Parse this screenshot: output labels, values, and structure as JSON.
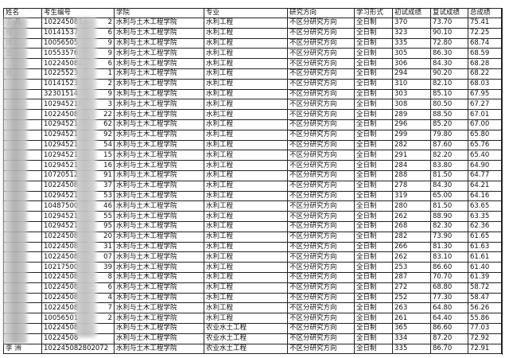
{
  "headers": [
    "姓名",
    "考生编号",
    "学院",
    "专业",
    "研究方向",
    "学习形式",
    "初试成绩",
    "复试成绩",
    "总成绩"
  ],
  "rows": [
    {
      "name": "丁 凡",
      "id_prefix": "102245081",
      "id_suffix": "2",
      "college": "水利与土木工程学院",
      "major": "水利工程",
      "direction": "不区分研究方向",
      "mode": "全日制",
      "initial": "370",
      "retest": "73.70",
      "total": "75.41"
    },
    {
      "name": "骞",
      "id_prefix": "10141537",
      "id_suffix": "6",
      "college": "水利与土木工程学院",
      "major": "水利工程",
      "direction": "不区分研究方向",
      "mode": "全日制",
      "initial": "323",
      "retest": "90.10",
      "total": "72.25"
    },
    {
      "name": "煲",
      "id_prefix": "10056505",
      "id_suffix": "9",
      "college": "水利与土木工程学院",
      "major": "水利工程",
      "direction": "不区分研究方向",
      "mode": "全日制",
      "initial": "335",
      "retest": "72.80",
      "total": "68.74"
    },
    {
      "name": "翌",
      "id_prefix": "10553576",
      "id_suffix": "9",
      "college": "水利与土木工程学院",
      "major": "水利工程",
      "direction": "不区分研究方向",
      "mode": "全日制",
      "initial": "305",
      "retest": "86.30",
      "total": "68.59"
    },
    {
      "name": "",
      "id_prefix": "102245081",
      "id_suffix": "6",
      "college": "水利与土木工程学院",
      "major": "水利工程",
      "direction": "不区分研究方向",
      "mode": "全日制",
      "initial": "306",
      "retest": "84.30",
      "total": "68.28"
    },
    {
      "name": "萁",
      "id_prefix": "10225523",
      "id_suffix": "1",
      "college": "水利与土木工程学院",
      "major": "水利工程",
      "direction": "不区分研究方向",
      "mode": "全日制",
      "initial": "294",
      "retest": "90.20",
      "total": "68.22"
    },
    {
      "name": "",
      "id_prefix": "10141523",
      "id_suffix": "2",
      "college": "水利与土木工程学院",
      "major": "水利工程",
      "direction": "不区分研究方向",
      "mode": "全日制",
      "initial": "310",
      "retest": "82.10",
      "total": "68.03"
    },
    {
      "name": "",
      "id_prefix": "32301514",
      "id_suffix": "9",
      "college": "水利与土木工程学院",
      "major": "水利工程",
      "direction": "不区分研究方向",
      "mode": "全日制",
      "initial": "303",
      "retest": "85.10",
      "total": "67.95"
    },
    {
      "name": "",
      "id_prefix": "102945210",
      "id_suffix": "3",
      "college": "水利与土木工程学院",
      "major": "水利工程",
      "direction": "不区分研究方向",
      "mode": "全日制",
      "initial": "308",
      "retest": "80.50",
      "total": "67.27"
    },
    {
      "name": "",
      "id_prefix": "10224508",
      "id_suffix": "22",
      "college": "水利与土木工程学院",
      "major": "水利工程",
      "direction": "不区分研究方向",
      "mode": "全日制",
      "initial": "289",
      "retest": "88.50",
      "total": "67.01"
    },
    {
      "name": "",
      "id_prefix": "10294521",
      "id_suffix": "62",
      "college": "水利与土木工程学院",
      "major": "水利工程",
      "direction": "不区分研究方向",
      "mode": "全日制",
      "initial": "296",
      "retest": "85.20",
      "total": "67.00"
    },
    {
      "name": "",
      "id_prefix": "10294521",
      "id_suffix": "92",
      "college": "水利与土木工程学院",
      "major": "水利工程",
      "direction": "不区分研究方向",
      "mode": "全日制",
      "initial": "299",
      "retest": "79.80",
      "total": "65.80"
    },
    {
      "name": "",
      "id_prefix": "10294521",
      "id_suffix": "54",
      "college": "水利与土木工程学院",
      "major": "水利工程",
      "direction": "不区分研究方向",
      "mode": "全日制",
      "initial": "282",
      "retest": "87.60",
      "total": "65.76"
    },
    {
      "name": "",
      "id_prefix": "10294521",
      "id_suffix": "15",
      "college": "水利与土木工程学院",
      "major": "水利工程",
      "direction": "不区分研究方向",
      "mode": "全日制",
      "initial": "291",
      "retest": "82.20",
      "total": "65.40"
    },
    {
      "name": "",
      "id_prefix": "10294521",
      "id_suffix": "16",
      "college": "水利与土木工程学院",
      "major": "水利工程",
      "direction": "不区分研究方向",
      "mode": "全日制",
      "initial": "284",
      "retest": "83.80",
      "total": "64.90"
    },
    {
      "name": "",
      "id_prefix": "10720512",
      "id_suffix": "91",
      "college": "水利与土木工程学院",
      "major": "水利工程",
      "direction": "不区分研究方向",
      "mode": "全日制",
      "initial": "288",
      "retest": "81.50",
      "total": "64.77"
    },
    {
      "name": "",
      "id_prefix": "10224508",
      "id_suffix": "37",
      "college": "水利与土木工程学院",
      "major": "水利工程",
      "direction": "不区分研究方向",
      "mode": "全日制",
      "initial": "278",
      "retest": "84.30",
      "total": "64.21"
    },
    {
      "name": "",
      "id_prefix": "10294521",
      "id_suffix": "53",
      "college": "水利与土木工程学院",
      "major": "水利工程",
      "direction": "不区分研究方向",
      "mode": "全日制",
      "initial": "319",
      "retest": "65.00",
      "total": "64.16"
    },
    {
      "name": "",
      "id_prefix": "10487500",
      "id_suffix": "46",
      "college": "水利与土木工程学院",
      "major": "水利工程",
      "direction": "不区分研究方向",
      "mode": "全日制",
      "initial": "280",
      "retest": "81.50",
      "total": "63.65"
    },
    {
      "name": "",
      "id_prefix": "10294521",
      "id_suffix": "55",
      "college": "水利与土木工程学院",
      "major": "水利工程",
      "direction": "不区分研究方向",
      "mode": "全日制",
      "initial": "262",
      "retest": "88.90",
      "total": "63.35"
    },
    {
      "name": "",
      "id_prefix": "10294521",
      "id_suffix": "95",
      "college": "水利与土木工程学院",
      "major": "水利工程",
      "direction": "不区分研究方向",
      "mode": "全日制",
      "initial": "268",
      "retest": "82.30",
      "total": "62.36"
    },
    {
      "name": "",
      "id_prefix": "10224508",
      "id_suffix": "20",
      "college": "水利与土木工程学院",
      "major": "水利工程",
      "direction": "不区分研究方向",
      "mode": "全日制",
      "initial": "282",
      "retest": "73.90",
      "total": "61.65"
    },
    {
      "name": "",
      "id_prefix": "10224508",
      "id_suffix": "31",
      "college": "水利与土木工程学院",
      "major": "水利工程",
      "direction": "不区分研究方向",
      "mode": "全日制",
      "initial": "266",
      "retest": "81.30",
      "total": "61.63"
    },
    {
      "name": "",
      "id_prefix": "10224508",
      "id_suffix": "07",
      "college": "水利与土木工程学院",
      "major": "水利工程",
      "direction": "不区分研究方向",
      "mode": "全日制",
      "initial": "262",
      "retest": "83.10",
      "total": "61.61"
    },
    {
      "name": "",
      "id_prefix": "10217500",
      "id_suffix": "39",
      "college": "水利与土木工程学院",
      "major": "水利工程",
      "direction": "不区分研究方向",
      "mode": "全日制",
      "initial": "253",
      "retest": "86.60",
      "total": "61.40"
    },
    {
      "name": "",
      "id_prefix": "10224508",
      "id_suffix": "8",
      "college": "水利与土木工程学院",
      "major": "水利工程",
      "direction": "不区分研究方向",
      "mode": "全日制",
      "initial": "287",
      "retest": "70.70",
      "total": "61.39"
    },
    {
      "name": "",
      "id_prefix": "10224508",
      "id_suffix": "6",
      "college": "水利与土木工程学院",
      "major": "水利工程",
      "direction": "不区分研究方向",
      "mode": "全日制",
      "initial": "272",
      "retest": "68.80",
      "total": "58.72"
    },
    {
      "name": "",
      "id_prefix": "10224508",
      "id_suffix": "4",
      "college": "水利与土木工程学院",
      "major": "水利工程",
      "direction": "不区分研究方向",
      "mode": "全日制",
      "initial": "252",
      "retest": "77.30",
      "total": "58.47"
    },
    {
      "name": "",
      "id_prefix": "10224508",
      "id_suffix": "7",
      "college": "水利与土木工程学院",
      "major": "水利工程",
      "direction": "不区分研究方向",
      "mode": "全日制",
      "initial": "263",
      "retest": "64.80",
      "total": "56.26"
    },
    {
      "name": "",
      "id_prefix": "10056501",
      "id_suffix": "2",
      "college": "水利与土木工程学院",
      "major": "水利工程",
      "direction": "不区分研究方向",
      "mode": "全日制",
      "initial": "261",
      "retest": "64.40",
      "total": "55.86"
    },
    {
      "name": "",
      "id_prefix": "10224508",
      "id_suffix": "",
      "college": "水利与土木工程学院",
      "major": "农业水土工程",
      "direction": "不区分研究方向",
      "mode": "全日制",
      "initial": "365",
      "retest": "86.60",
      "total": "77.03"
    },
    {
      "name": "",
      "id_prefix": "10224508",
      "id_suffix": "",
      "college": "水利与土木工程学院",
      "major": "农业水土工程",
      "direction": "不区分研究方向",
      "mode": "全日制",
      "initial": "334",
      "retest": "87.20",
      "total": "72.92"
    },
    {
      "name": "李 洲",
      "id_prefix": "102245082802072",
      "id_suffix": "",
      "college": "水利与土木工程学院",
      "major": "农业水土工程",
      "direction": "不区分研究方向",
      "mode": "全日制",
      "initial": "335",
      "retest": "86.70",
      "total": "72.91"
    }
  ]
}
